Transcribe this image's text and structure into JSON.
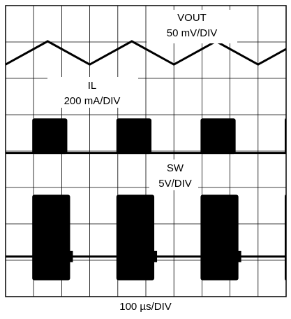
{
  "chart_data": {
    "type": "line",
    "title": "",
    "xlabel": "100 µs/DIV",
    "grid": true,
    "grid_divisions": {
      "x": 10,
      "y": 8
    },
    "series": [
      {
        "name": "VOUT",
        "label": "VOUT",
        "scale": "50 mV/DIV",
        "shape": "triangle",
        "center_div": 6.7,
        "peak_to_peak_div": 0.64,
        "peaks_div": [
          1.5,
          4.5,
          7.5
        ],
        "valleys_div": [
          0.0,
          3.0,
          6.0,
          9.0
        ],
        "period_div": 3.0
      },
      {
        "name": "IL",
        "label": "IL",
        "scale": "200 mA/DIV",
        "shape": "burst",
        "baseline_div": 3.95,
        "burst_height_div": 0.95,
        "bursts_div": [
          [
            0.95,
            2.2
          ],
          [
            3.95,
            5.2
          ],
          [
            6.95,
            8.2
          ],
          [
            9.95,
            10.0
          ]
        ]
      },
      {
        "name": "SW",
        "label": "SW",
        "scale": "5V/DIV",
        "shape": "burst",
        "baseline_div": 1.1,
        "burst_height_div": 1.7,
        "burst_depth_div": 0.65,
        "bursts_div": [
          [
            0.95,
            2.3
          ],
          [
            3.95,
            5.3
          ],
          [
            6.95,
            8.3
          ],
          [
            9.95,
            10.0
          ]
        ]
      }
    ]
  }
}
